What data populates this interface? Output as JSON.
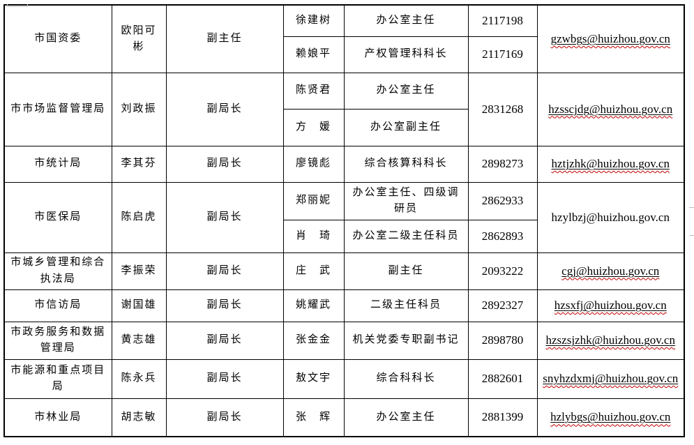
{
  "styles": {
    "border_color": "#000000",
    "text_color": "#000000",
    "spellcheck_squiggle_color": "#c00000",
    "email_underline_color": "#000000",
    "page_background": "#ffffff"
  },
  "table": {
    "groups": [
      {
        "department": "市国资委",
        "leader": "欧阳可彬",
        "leader_title": "副主任",
        "email": "gzwbgs@huizhou.gov.cn",
        "email_underlined": true,
        "email_spellcheck": true,
        "contacts": [
          {
            "name": "徐建树",
            "title": "办公室主任",
            "phone": "2117198"
          },
          {
            "name": "赖娘平",
            "title": "产权管理科科长",
            "phone": "2117169"
          }
        ]
      },
      {
        "department": "市市场监督管理局",
        "leader": "刘政振",
        "leader_title": "副局长",
        "phone": "2831268",
        "email": "hzsscjdg@huizhou.gov.cn",
        "email_underlined": true,
        "email_spellcheck": true,
        "contacts": [
          {
            "name": "陈贤君",
            "title": "办公室主任"
          },
          {
            "name": "方　媛",
            "title": "办公室副主任"
          }
        ]
      },
      {
        "department": "市统计局",
        "leader": "李其芬",
        "leader_title": "副局长",
        "email": "hztjzhk@huizhou.gov.cn",
        "email_underlined": true,
        "email_spellcheck": true,
        "contacts": [
          {
            "name": "廖镜彪",
            "title": "综合核算科科长",
            "phone": "2898273"
          }
        ]
      },
      {
        "department": "市医保局",
        "leader": "陈启虎",
        "leader_title": "副局长",
        "email": "hzylbzj@huizhou.gov.cn",
        "email_underlined": false,
        "email_spellcheck": false,
        "contacts": [
          {
            "name": "郑丽妮",
            "title": "办公室主任、四级调研员",
            "phone": "2862933"
          },
          {
            "name": "肖　琦",
            "title": "办公室二级主任科员",
            "phone": "2862893"
          }
        ]
      },
      {
        "department": "市城乡管理和综合执法局",
        "leader": "李振荣",
        "leader_title": "副局长",
        "email": "cgj@huizhou.gov.cn",
        "email_underlined": true,
        "email_spellcheck": true,
        "contacts": [
          {
            "name": "庄　武",
            "title": "副主任",
            "phone": "2093222"
          }
        ]
      },
      {
        "department": "市信访局",
        "leader": "谢国雄",
        "leader_title": "副局长",
        "email": "hzsxfj@huizhou.gov.cn",
        "email_underlined": true,
        "email_spellcheck": true,
        "contacts": [
          {
            "name": "姚耀武",
            "title": "二级主任科员",
            "phone": "2892327"
          }
        ]
      },
      {
        "department": "市政务服务和数据管理局",
        "leader": "黄志雄",
        "leader_title": "副局长",
        "email": "hzszsjzhk@huizhou.gov.cn",
        "email_underlined": true,
        "email_spellcheck": true,
        "contacts": [
          {
            "name": "张金金",
            "title": "机关党委专职副书记",
            "phone": "2898780"
          }
        ]
      },
      {
        "department": "市能源和重点项目局",
        "leader": "陈永兵",
        "leader_title": "副局长",
        "email": "snyhzdxmj@huizhou.gov.cn",
        "email_underlined": true,
        "email_spellcheck": true,
        "contacts": [
          {
            "name": "敖文宇",
            "title": "综合科科长",
            "phone": "2882601"
          }
        ]
      },
      {
        "department": "市林业局",
        "leader": "胡志敏",
        "leader_title": "副局长",
        "email": "hzlybgs@huizhou.gov.cn",
        "email_underlined": true,
        "email_spellcheck": true,
        "contacts": [
          {
            "name": "张　辉",
            "title": "办公室主任",
            "phone": "2881399"
          }
        ]
      }
    ]
  }
}
